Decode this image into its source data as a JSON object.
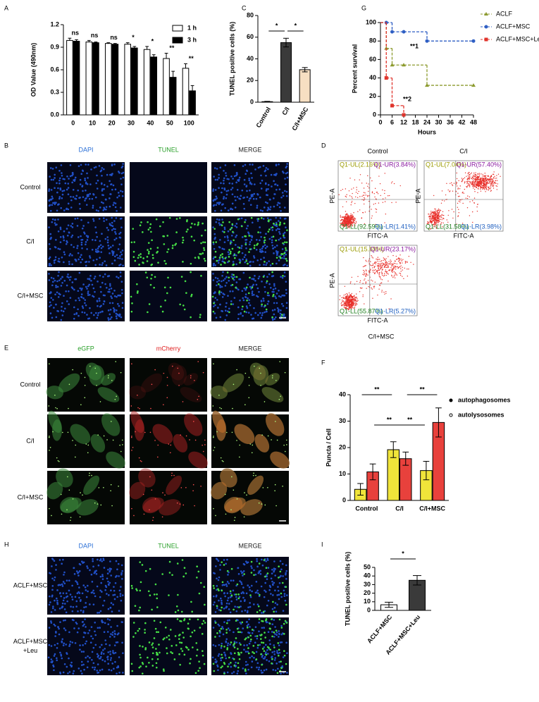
{
  "panel_labels": [
    "A",
    "B",
    "C",
    "D",
    "E",
    "F",
    "G",
    "H",
    "I"
  ],
  "chart_data": [
    {
      "type": "bar",
      "y_label": "OD Value (490nm)",
      "categories": [
        "0",
        "10",
        "20",
        "30",
        "40",
        "50",
        "100"
      ],
      "series": [
        {
          "name": "1 h",
          "color": "#ffffff",
          "values": [
            0.99,
            0.97,
            0.95,
            0.94,
            0.87,
            0.75,
            0.62
          ],
          "errors": [
            0.03,
            0.02,
            0.01,
            0.02,
            0.04,
            0.07,
            0.06
          ]
        },
        {
          "name": "3 h",
          "color": "#000000",
          "values": [
            0.98,
            0.96,
            0.94,
            0.89,
            0.77,
            0.5,
            0.32
          ],
          "errors": [
            0.02,
            0.01,
            0.01,
            0.02,
            0.03,
            0.08,
            0.07
          ]
        }
      ],
      "ylim": [
        0,
        1.2
      ],
      "yticks": [
        {
          "value": 0,
          "label": "0.0"
        },
        0.3,
        0.6,
        0.9,
        1.2
      ],
      "significance": [
        "ns",
        "ns",
        "ns",
        "*",
        "*",
        "**",
        "**"
      ],
      "legend": "upper right"
    },
    {
      "type": "bar",
      "y_label": "TUNEL positive cells (%)",
      "categories": [
        "Control",
        "C/I",
        "C/I+MSC"
      ],
      "values": [
        0.5,
        55,
        30
      ],
      "errors": [
        0.3,
        4,
        2
      ],
      "colors": [
        "#ffffff",
        "#3a3a3a",
        "#f7dfc2"
      ],
      "ylim": [
        0,
        80
      ],
      "yticks": [
        0,
        20,
        40,
        60,
        80
      ],
      "significance": [
        "*",
        "*"
      ]
    },
    {
      "type": "line",
      "step": true,
      "y_label": "Percent survival",
      "x_label": "Hours",
      "series": [
        {
          "name": "ACLF",
          "color": "#8c9a2e",
          "marker": "triangle",
          "x": [
            0,
            3,
            6,
            12,
            24,
            48
          ],
          "values": [
            100,
            72,
            54,
            54,
            32,
            32
          ]
        },
        {
          "name": "ACLF+MSC",
          "color": "#2f5fc4",
          "marker": "circle",
          "x": [
            0,
            3,
            6,
            12,
            24,
            48
          ],
          "values": [
            100,
            100,
            90,
            90,
            80,
            80
          ]
        },
        {
          "name": "ACLF+MSC+Leu",
          "color": "#e0342c",
          "marker": "square",
          "x": [
            0,
            3,
            6,
            12
          ],
          "values": [
            100,
            40,
            10,
            0
          ]
        }
      ],
      "xlim": [
        0,
        48
      ],
      "xticks": [
        0,
        6,
        12,
        18,
        24,
        30,
        36,
        42,
        48
      ],
      "ylim": [
        0,
        100
      ],
      "yticks": [
        0,
        20,
        40,
        60,
        80,
        100
      ],
      "annotations": [
        "**1",
        "**2"
      ],
      "legend": "right"
    },
    {
      "type": "bar",
      "y_label": "Puncta / Cell",
      "categories": [
        "Control",
        "C/I",
        "C/I+MSC"
      ],
      "series": [
        {
          "name": "autophagosomes",
          "color": "#f0e43a",
          "values": [
            4.2,
            19.2,
            11.3
          ],
          "errors": [
            2.2,
            3,
            3.5
          ]
        },
        {
          "name": "autolysosomes",
          "color": "#e8413c",
          "values": [
            10.8,
            15.8,
            29.5
          ],
          "errors": [
            3,
            2.5,
            5.5
          ]
        }
      ],
      "ylim": [
        0,
        40
      ],
      "yticks": [
        0,
        10,
        20,
        30,
        40
      ],
      "significance": [
        "**",
        "**",
        "**",
        "**"
      ],
      "legend": "right"
    },
    {
      "type": "bar",
      "y_label": "TUNEL positive cells (%)",
      "categories": [
        "ACLF+MSC",
        "ACLF+MSC+Leu"
      ],
      "values": [
        6.5,
        35
      ],
      "errors": [
        3,
        5.5
      ],
      "colors": [
        "#ffffff",
        "#3a3a3a"
      ],
      "ylim": [
        0,
        50
      ],
      "yticks": [
        0,
        10,
        20,
        30,
        40,
        50
      ],
      "significance": [
        "*"
      ]
    }
  ],
  "microscopy": [
    {
      "columns": [
        "DAPI",
        "TUNEL",
        "MERGE"
      ],
      "rows": [
        "Control",
        "C/I",
        "C/I+MSC"
      ]
    },
    {
      "columns": [
        "eGFP",
        "mCherry",
        "MERGE"
      ],
      "rows": [
        "Control",
        "C/I",
        "C/I+MSC"
      ]
    },
    {
      "columns": [
        "DAPI",
        "TUNEL",
        "MERGE"
      ],
      "rows": [
        [
          "ACLF+MSC"
        ],
        [
          "ACLF+MSC",
          "+Leu"
        ]
      ]
    }
  ],
  "flow_cytometry": {
    "x_label": "FITC-A",
    "y_label": "PE-A",
    "plots": [
      {
        "title": "Control",
        "quadrants": [
          "Q1-UL(2.16%)",
          "Q1-UR(3.84%)",
          "Q1-LL(92.59%)",
          "Q1-LR(1.41%)"
        ]
      },
      {
        "title": "C/I",
        "quadrants": [
          "Q1-UL(7.04%)",
          "Q1-UR(57.40%)",
          "Q1-LL(31.58%)",
          "Q1-LR(3.98%)"
        ]
      },
      {
        "title": "C/I+MSC",
        "quadrants": [
          "Q1-UL(15.69%)",
          "Q1-UR(23.17%)",
          "Q1-LL(55.87%)",
          "Q1-LR(5.27%)"
        ]
      }
    ]
  }
}
